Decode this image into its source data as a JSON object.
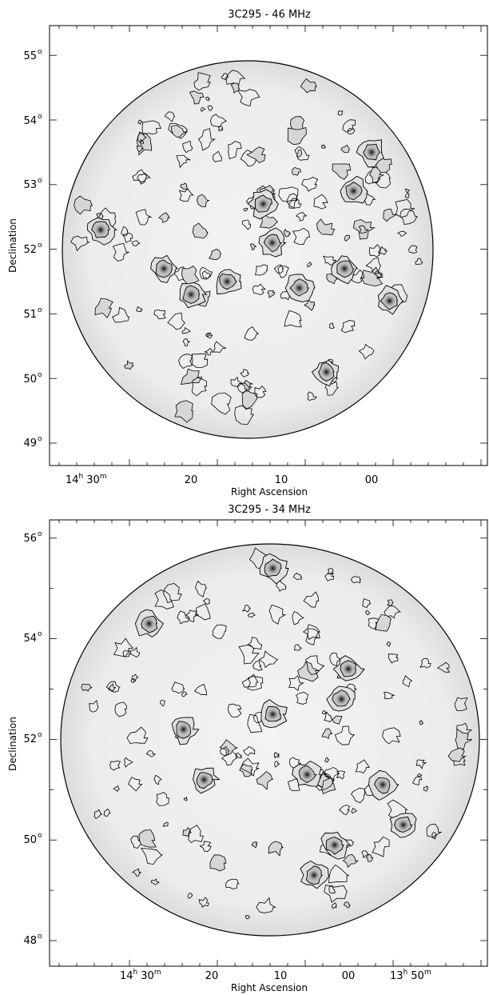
{
  "chart_data": [
    {
      "type": "contour map",
      "title": "3C295 - 46 MHz",
      "xlabel": "Right Ascension",
      "ylabel": "Declination",
      "x_ticks": [
        {
          "h": "14",
          "m": "30",
          "label": ""
        },
        {
          "label": "20"
        },
        {
          "label": "10"
        },
        {
          "label": "00"
        }
      ],
      "y_ticks": [
        "49",
        "50",
        "51",
        "52",
        "53",
        "54",
        "55"
      ],
      "grid": false,
      "colormap": "grayscale",
      "sources": [
        {
          "ra_label": "00",
          "dec": 53.5
        },
        {
          "ra_label": "02",
          "dec": 52.9
        },
        {
          "ra_label": "08",
          "dec": 51.4
        },
        {
          "ra_label": "30",
          "dec": 52.3
        },
        {
          "ra_label": "20",
          "dec": 51.3
        },
        {
          "ra_label": "12",
          "dec": 52.7
        },
        {
          "ra_label": "11",
          "dec": 52.1
        },
        {
          "ra_label": "58",
          "dec": 51.2
        },
        {
          "ra_label": "03",
          "dec": 51.7
        },
        {
          "ra_label": "16",
          "dec": 51.5
        },
        {
          "ra_label": "05",
          "dec": 50.1
        },
        {
          "ra_label": "23",
          "dec": 51.7
        }
      ]
    },
    {
      "type": "contour map",
      "title": "3C295 - 34 MHz",
      "xlabel": "Right Ascension",
      "ylabel": "Declination",
      "x_ticks": [
        {
          "h": "14",
          "m": "30",
          "label": ""
        },
        {
          "label": "20"
        },
        {
          "label": "10"
        },
        {
          "label": "00"
        },
        {
          "h": "13",
          "m": "50",
          "label": ""
        }
      ],
      "y_ticks": [
        "48",
        "50",
        "52",
        "54",
        "56"
      ],
      "grid": false,
      "colormap": "grayscale",
      "sources": [
        {
          "ra_label": "00",
          "dec": 53.4
        },
        {
          "ra_label": "01",
          "dec": 52.8
        },
        {
          "ra_label": "29",
          "dec": 54.3
        },
        {
          "ra_label": "11",
          "dec": 55.4
        },
        {
          "ra_label": "24",
          "dec": 52.2
        },
        {
          "ra_label": "21",
          "dec": 51.2
        },
        {
          "ra_label": "06",
          "dec": 51.3
        },
        {
          "ra_label": "55",
          "dec": 51.1
        },
        {
          "ra_label": "02",
          "dec": 49.9
        },
        {
          "ra_label": "52",
          "dec": 50.3
        },
        {
          "ra_label": "11",
          "dec": 52.5
        },
        {
          "ra_label": "05",
          "dec": 49.3
        }
      ]
    }
  ]
}
